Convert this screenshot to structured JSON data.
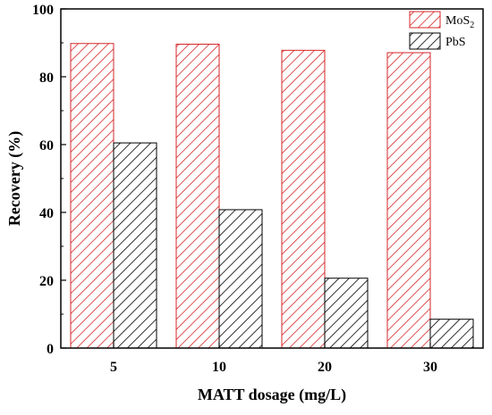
{
  "chart_data": {
    "type": "bar",
    "xlabel": "MATT dosage (mg/L)",
    "ylabel": "Recovery (%)",
    "categories": [
      "5",
      "10",
      "20",
      "30"
    ],
    "ylim": [
      0,
      100
    ],
    "yticks": [
      0,
      20,
      40,
      60,
      80,
      100
    ],
    "grid": false,
    "legend_position": "top-right",
    "series": [
      {
        "name": "MoS",
        "name_subscript": "2",
        "values": [
          89.8,
          89.6,
          87.8,
          87.1
        ],
        "color": "#d62728",
        "hatch": "diagonal"
      },
      {
        "name": "PbS",
        "values": [
          60.5,
          40.8,
          20.6,
          8.5
        ],
        "color": "#000000",
        "hatch": "diagonal"
      }
    ]
  }
}
